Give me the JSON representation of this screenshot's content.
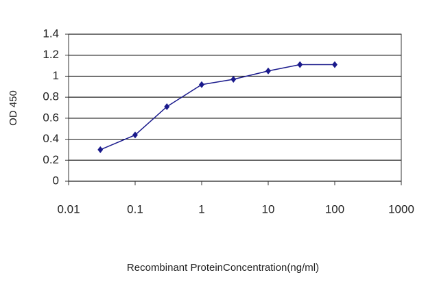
{
  "chart_data": {
    "type": "line",
    "x": [
      0.03,
      0.1,
      0.3,
      1,
      3,
      10,
      30,
      100
    ],
    "values": [
      0.3,
      0.44,
      0.71,
      0.92,
      0.97,
      1.05,
      1.11,
      1.11
    ],
    "color": "#1a1a8c",
    "xlabel": "Recombinant ProteinConcentration(ng/ml)",
    "ylabel": "OD 450",
    "xlim": [
      0.01,
      1000
    ],
    "xticks": [
      0.01,
      0.1,
      1,
      10,
      100,
      1000
    ],
    "xlog": true,
    "ylim": [
      0,
      1.4
    ],
    "yticks": [
      0,
      0.2,
      0.4,
      0.6,
      0.8,
      1,
      1.2,
      1.4
    ],
    "grid": true
  }
}
